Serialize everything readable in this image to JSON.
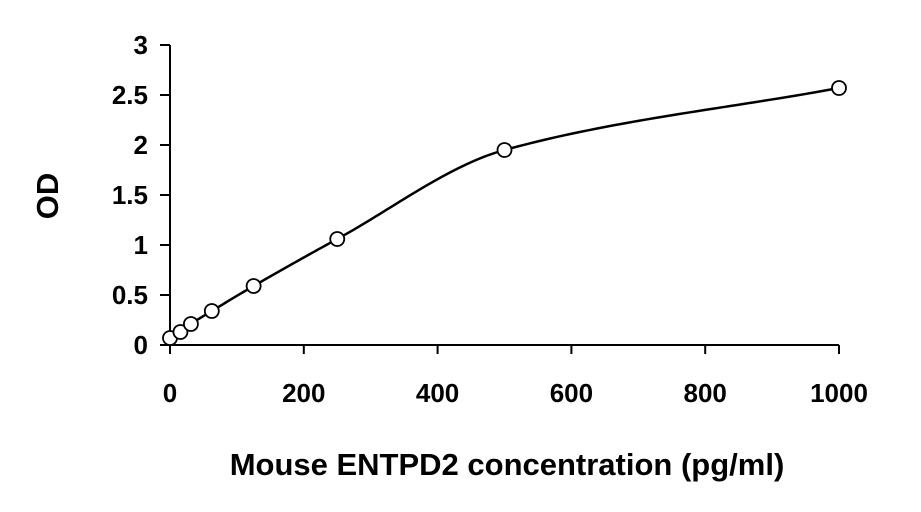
{
  "chart_data": {
    "type": "scatter",
    "title": "",
    "xlabel": "Mouse ENTPD2 concentration (pg/ml)",
    "ylabel": "OD",
    "xlim": [
      0,
      1000
    ],
    "ylim": [
      0,
      3
    ],
    "x_ticks": [
      "0",
      "200",
      "400",
      "600",
      "800",
      "1000"
    ],
    "y_ticks": [
      "0",
      "0.5",
      "1",
      "1.5",
      "2",
      "2.5",
      "3"
    ],
    "grid": false,
    "legend": "none",
    "series": [
      {
        "marker": "open-circle",
        "trendline": "smooth-curve",
        "x": [
          0,
          15.6,
          31.25,
          62.5,
          125,
          250,
          500,
          1000
        ],
        "y": [
          0.07,
          0.13,
          0.21,
          0.34,
          0.59,
          1.06,
          1.95,
          2.57
        ]
      }
    ],
    "colors": {
      "marker_stroke": "#000000",
      "marker_fill": "#ffffff",
      "line": "#000000",
      "axis": "#000000"
    }
  }
}
